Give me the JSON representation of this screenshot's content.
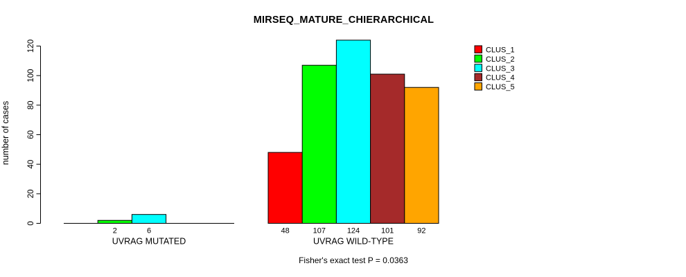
{
  "chart_data": {
    "type": "bar",
    "title": "MIRSEQ_MATURE_CHIERARCHICAL",
    "ylabel": "number of cases",
    "xlabel": "",
    "ylim": [
      0,
      120
    ],
    "yticks": [
      0,
      20,
      40,
      60,
      80,
      100,
      120
    ],
    "grid": false,
    "legend_position": "top-right",
    "series": [
      "CLUS_1",
      "CLUS_2",
      "CLUS_3",
      "CLUS_4",
      "CLUS_5"
    ],
    "colors": [
      "#ff0000",
      "#00ff00",
      "#00ffff",
      "#a52a2a",
      "#ffa500"
    ],
    "groups": [
      {
        "label": "UVRAG MUTATED",
        "values": [
          0,
          2,
          6,
          0,
          0
        ],
        "bar_labels": [
          "",
          "2",
          "6",
          "",
          ""
        ]
      },
      {
        "label": "UVRAG WILD-TYPE",
        "values": [
          48,
          107,
          124,
          101,
          92
        ],
        "bar_labels": [
          "48",
          "107",
          "124",
          "101",
          "92"
        ]
      }
    ],
    "annotation": "Fisher's exact test P = 0.0363"
  }
}
